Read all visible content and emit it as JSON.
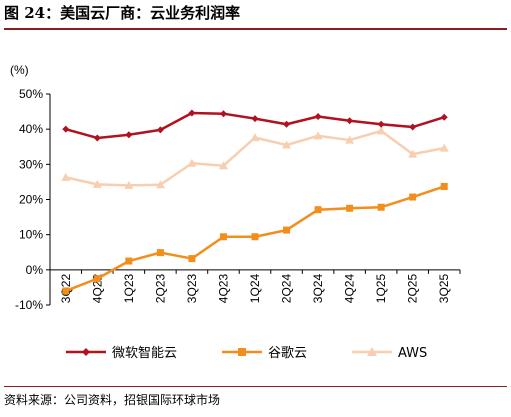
{
  "figure": {
    "title": "图 24：美国云厂商：云业务利润率",
    "source": "资料来源：公司资料，招银国际环球市场"
  },
  "chart_data": {
    "type": "line",
    "ylabel": "(%)",
    "categories": [
      "3Q22",
      "4Q22",
      "1Q23",
      "2Q23",
      "3Q23",
      "4Q23",
      "1Q24",
      "2Q24",
      "3Q24",
      "4Q24",
      "1Q25",
      "2Q25",
      "3Q25"
    ],
    "ylim": [
      -10,
      50
    ],
    "yticks": [
      -10,
      0,
      10,
      20,
      30,
      40,
      50
    ],
    "ytick_labels": [
      "-10%",
      "0%",
      "10%",
      "20%",
      "30%",
      "40%",
      "50%"
    ],
    "grid": false,
    "legend_position": "bottom",
    "series": [
      {
        "name": "微软智能云",
        "color": "#b0121f",
        "marker": "diamond",
        "values": [
          40.0,
          37.5,
          38.4,
          39.8,
          44.6,
          44.4,
          43.0,
          41.4,
          43.6,
          42.4,
          41.4,
          40.6,
          43.4
        ]
      },
      {
        "name": "谷歌云",
        "color": "#f28e1c",
        "marker": "square",
        "values": [
          -6.0,
          -2.5,
          2.5,
          4.9,
          3.2,
          9.4,
          9.4,
          11.3,
          17.1,
          17.5,
          17.8,
          20.7,
          23.7
        ]
      },
      {
        "name": "AWS",
        "color": "#f7cfb0",
        "marker": "triangle",
        "values": [
          26.3,
          24.3,
          24.0,
          24.2,
          30.3,
          29.6,
          37.6,
          35.5,
          38.1,
          36.9,
          39.5,
          32.9,
          34.6
        ]
      }
    ]
  }
}
